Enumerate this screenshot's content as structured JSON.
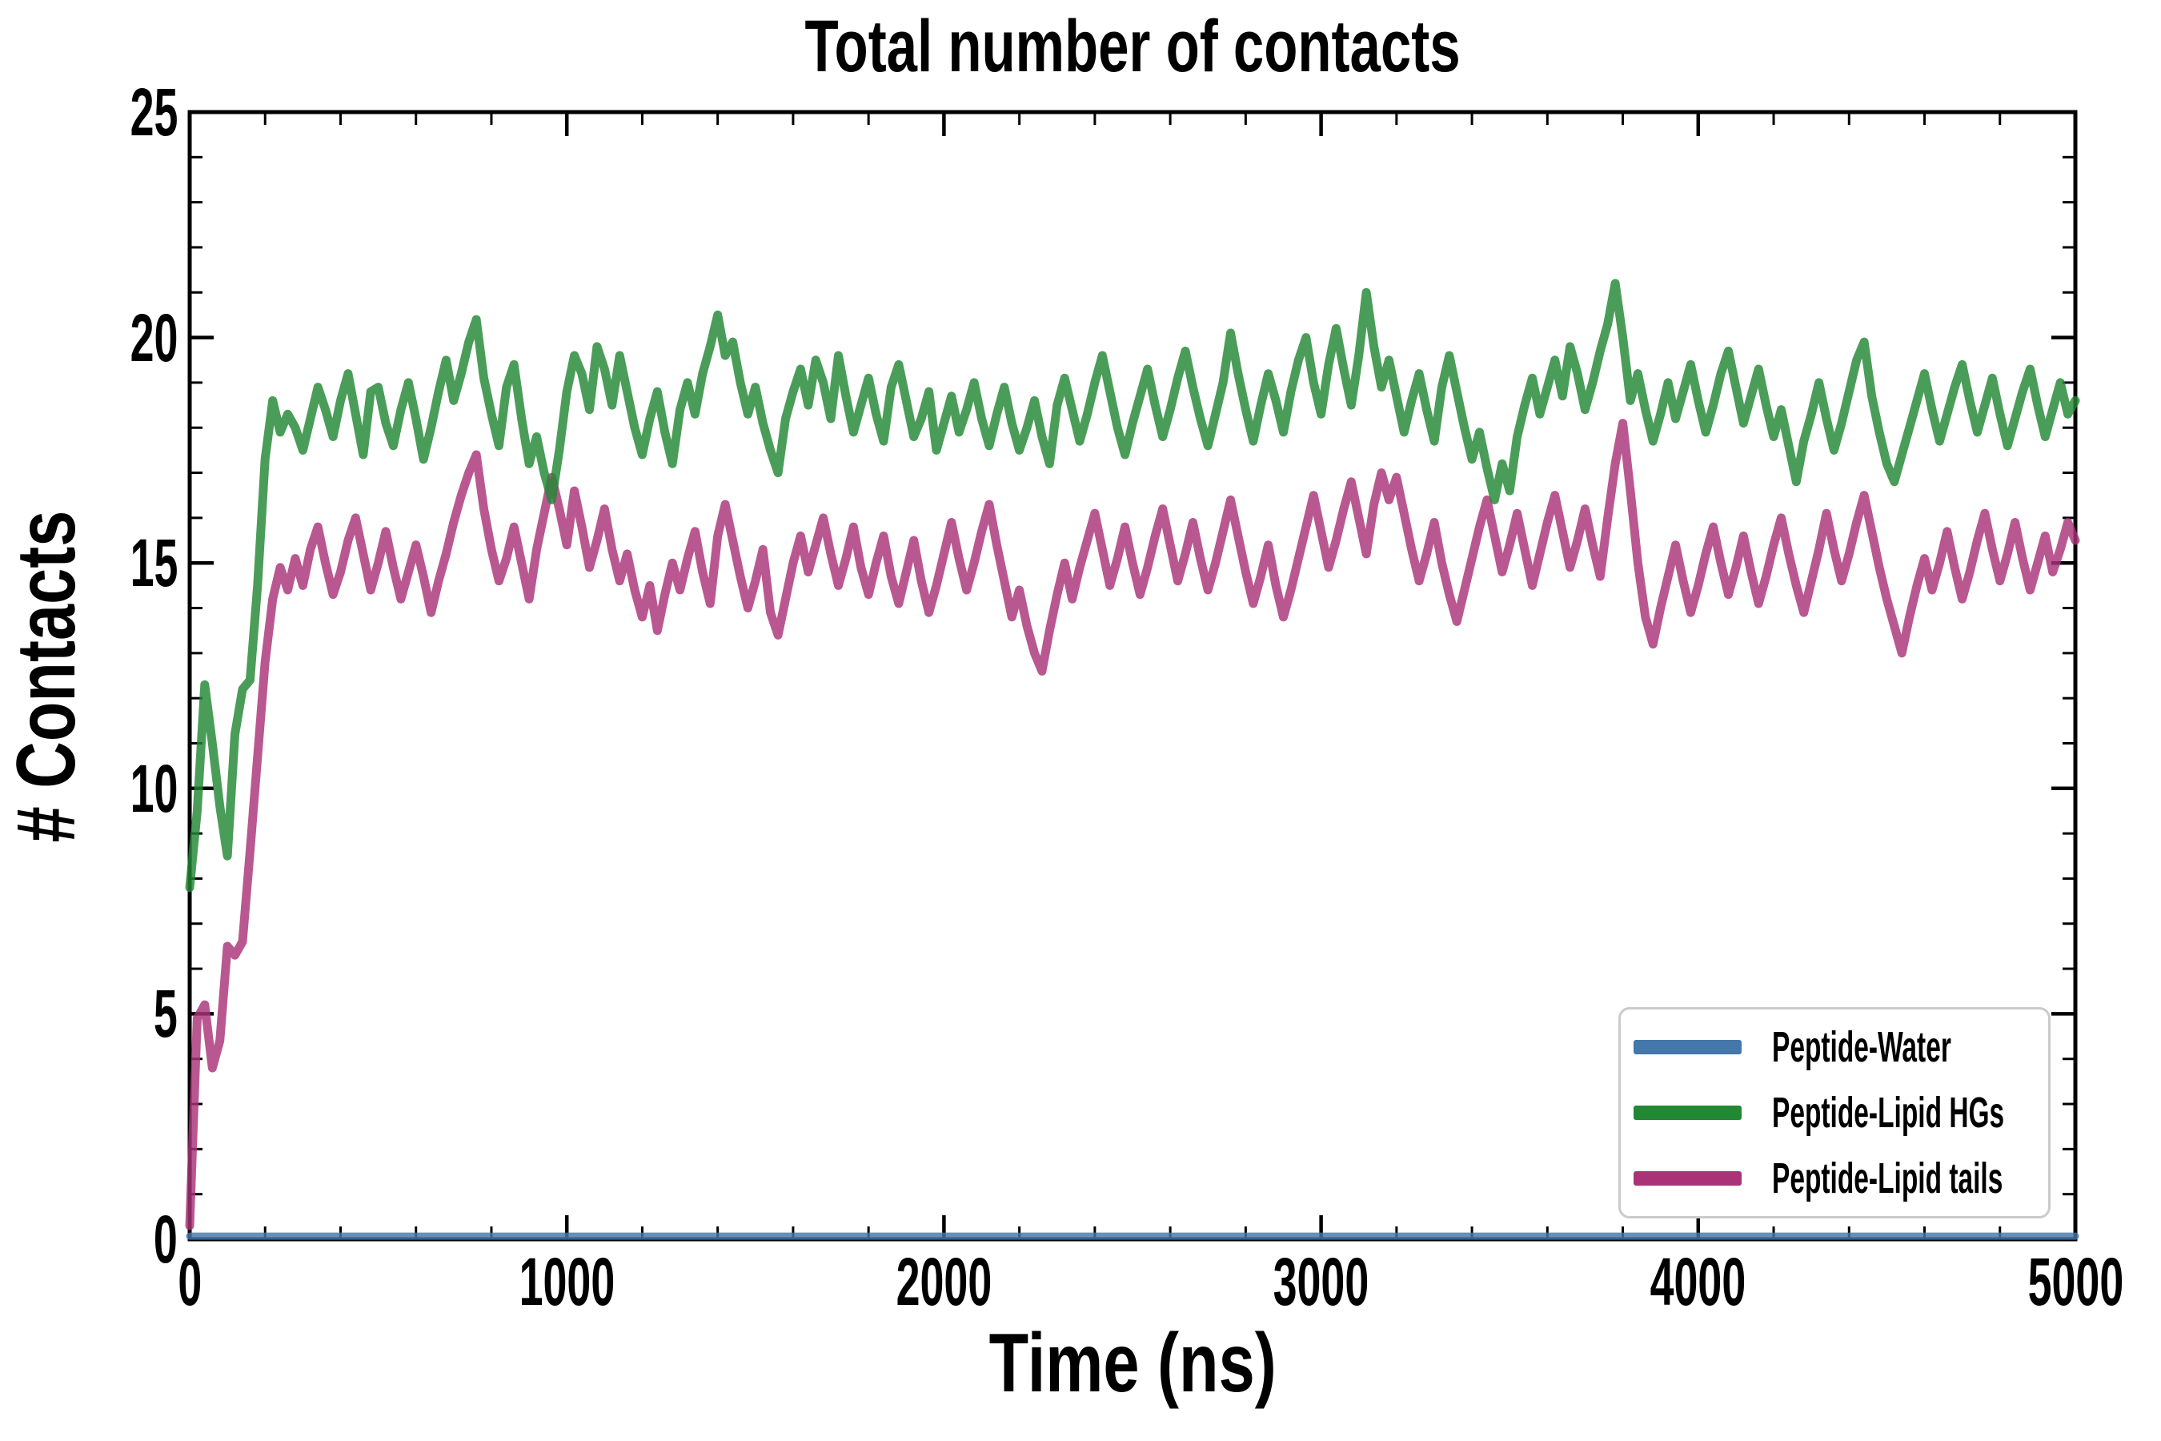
{
  "chart_data": {
    "type": "line",
    "title": "Total number of contacts",
    "xlabel": "Time (ns)",
    "ylabel": "# Contacts",
    "xlim": [
      0,
      5000
    ],
    "ylim": [
      0,
      25
    ],
    "x_tick_values": [
      0,
      1000,
      2000,
      3000,
      4000,
      5000
    ],
    "x_tick_labels": [
      "0",
      "1000",
      "2000",
      "3000",
      "4000",
      "5000"
    ],
    "x_minor_step": 200,
    "y_tick_values": [
      0,
      5,
      10,
      15,
      20,
      25
    ],
    "y_tick_labels": [
      "0",
      "5",
      "10",
      "15",
      "20",
      "25"
    ],
    "y_minor_step": 1,
    "grid": false,
    "background": "#ffffff",
    "legend_position": "lower right",
    "x_unit": "ns",
    "x_start": 0,
    "x_step": 20,
    "series": [
      {
        "name": "Peptide-Water",
        "color": "#4477AA",
        "line_width": 9,
        "constant_y": 0.07
      },
      {
        "name": "Peptide-Lipid tails",
        "color": "#AA3377",
        "line_width": 11,
        "y": [
          0.3,
          4.9,
          5.2,
          3.8,
          4.4,
          6.5,
          6.3,
          6.6,
          8.6,
          10.7,
          12.8,
          14.2,
          14.9,
          14.4,
          15.1,
          14.5,
          15.3,
          15.8,
          15.0,
          14.3,
          14.8,
          15.5,
          16.0,
          15.2,
          14.4,
          15.0,
          15.7,
          14.9,
          14.2,
          14.8,
          15.4,
          14.7,
          13.9,
          14.6,
          15.2,
          15.9,
          16.5,
          17.0,
          17.4,
          16.2,
          15.3,
          14.6,
          15.1,
          15.8,
          15.0,
          14.2,
          15.3,
          16.1,
          16.9,
          16.2,
          15.4,
          16.6,
          15.8,
          14.9,
          15.5,
          16.2,
          15.3,
          14.6,
          15.2,
          14.4,
          13.8,
          14.5,
          13.5,
          14.3,
          15.0,
          14.4,
          15.1,
          15.7,
          14.8,
          14.1,
          15.6,
          16.3,
          15.5,
          14.7,
          14.0,
          14.6,
          15.3,
          13.9,
          13.4,
          14.2,
          15.0,
          15.6,
          14.8,
          15.4,
          16.0,
          15.2,
          14.5,
          15.1,
          15.8,
          14.9,
          14.3,
          15.0,
          15.6,
          14.7,
          14.1,
          14.8,
          15.5,
          14.6,
          13.9,
          14.5,
          15.2,
          15.9,
          15.1,
          14.4,
          15.0,
          15.7,
          16.3,
          15.4,
          14.6,
          13.8,
          14.4,
          13.6,
          13.0,
          12.6,
          13.5,
          14.3,
          15.0,
          14.2,
          14.9,
          15.5,
          16.1,
          15.3,
          14.5,
          15.1,
          15.8,
          15.0,
          14.3,
          14.9,
          15.6,
          16.2,
          15.4,
          14.6,
          15.2,
          15.9,
          15.1,
          14.4,
          15.0,
          15.7,
          16.4,
          15.6,
          14.8,
          14.1,
          14.7,
          15.4,
          14.5,
          13.8,
          14.4,
          15.1,
          15.8,
          16.5,
          15.7,
          14.9,
          15.5,
          16.2,
          16.8,
          16.0,
          15.2,
          16.3,
          17.0,
          16.4,
          16.9,
          16.1,
          15.3,
          14.6,
          15.2,
          15.9,
          15.0,
          14.3,
          13.7,
          14.4,
          15.1,
          15.8,
          16.4,
          15.6,
          14.8,
          15.4,
          16.1,
          15.3,
          14.5,
          15.2,
          15.9,
          16.5,
          15.7,
          14.9,
          15.5,
          16.2,
          15.4,
          14.7,
          16.0,
          17.2,
          18.1,
          16.6,
          15.0,
          13.8,
          13.2,
          14.0,
          14.7,
          15.4,
          14.6,
          13.9,
          14.5,
          15.2,
          15.8,
          15.0,
          14.3,
          14.9,
          15.6,
          14.8,
          14.1,
          14.7,
          15.4,
          16.0,
          15.2,
          14.5,
          13.9,
          14.6,
          15.3,
          16.1,
          15.3,
          14.6,
          15.2,
          15.9,
          16.5,
          15.7,
          14.9,
          14.2,
          13.6,
          13.0,
          13.8,
          14.5,
          15.1,
          14.4,
          15.0,
          15.7,
          14.9,
          14.2,
          14.8,
          15.5,
          16.1,
          15.3,
          14.6,
          15.2,
          15.9,
          15.1,
          14.4,
          15.0,
          15.6,
          14.8,
          15.3,
          15.9,
          15.5
        ]
      },
      {
        "name": "Peptide-Lipid HGs",
        "color": "#228833",
        "line_width": 11,
        "y": [
          7.8,
          9.5,
          12.3,
          11.0,
          9.6,
          8.5,
          11.2,
          12.2,
          12.4,
          14.5,
          17.3,
          18.6,
          17.9,
          18.3,
          18.0,
          17.5,
          18.2,
          18.9,
          18.4,
          17.8,
          18.6,
          19.2,
          18.3,
          17.4,
          18.8,
          18.9,
          18.1,
          17.6,
          18.4,
          19.0,
          18.2,
          17.3,
          18.0,
          18.8,
          19.5,
          18.6,
          19.2,
          19.9,
          20.4,
          19.1,
          18.3,
          17.6,
          18.9,
          19.4,
          18.2,
          17.2,
          17.8,
          17.0,
          16.4,
          17.5,
          18.8,
          19.6,
          19.2,
          18.4,
          19.8,
          19.3,
          18.5,
          19.6,
          18.8,
          18.0,
          17.4,
          18.2,
          18.8,
          17.9,
          17.2,
          18.4,
          19.0,
          18.3,
          19.2,
          19.8,
          20.5,
          19.6,
          19.9,
          19.0,
          18.3,
          18.9,
          18.1,
          17.5,
          17.0,
          18.2,
          18.8,
          19.3,
          18.5,
          19.5,
          19.0,
          18.2,
          19.6,
          18.7,
          17.9,
          18.5,
          19.1,
          18.3,
          17.7,
          18.9,
          19.4,
          18.6,
          17.8,
          18.2,
          18.8,
          17.5,
          18.1,
          18.7,
          17.9,
          18.4,
          19.0,
          18.2,
          17.6,
          18.3,
          18.9,
          18.1,
          17.5,
          18.0,
          18.6,
          17.8,
          17.2,
          18.5,
          19.1,
          18.4,
          17.7,
          18.3,
          19.0,
          19.6,
          18.8,
          18.0,
          17.4,
          18.1,
          18.7,
          19.3,
          18.5,
          17.8,
          18.4,
          19.1,
          19.7,
          18.9,
          18.2,
          17.6,
          18.3,
          19.0,
          20.1,
          19.2,
          18.4,
          17.7,
          18.5,
          19.2,
          18.6,
          17.9,
          18.8,
          19.5,
          20.0,
          19.0,
          18.3,
          19.4,
          20.2,
          19.3,
          18.5,
          19.6,
          21.0,
          19.8,
          18.9,
          19.5,
          18.7,
          17.9,
          18.6,
          19.2,
          18.4,
          17.7,
          18.9,
          19.6,
          18.8,
          18.0,
          17.3,
          17.9,
          17.1,
          16.4,
          17.2,
          16.6,
          17.8,
          18.5,
          19.1,
          18.3,
          18.9,
          19.5,
          18.7,
          19.8,
          19.2,
          18.4,
          19.0,
          19.7,
          20.3,
          21.2,
          20.0,
          18.6,
          19.2,
          18.4,
          17.7,
          18.3,
          19.0,
          18.2,
          18.8,
          19.4,
          18.6,
          17.9,
          18.5,
          19.2,
          19.7,
          18.9,
          18.1,
          18.7,
          19.3,
          18.5,
          17.8,
          18.4,
          17.6,
          16.8,
          17.7,
          18.3,
          19.0,
          18.2,
          17.5,
          18.1,
          18.8,
          19.5,
          19.9,
          18.7,
          17.9,
          17.2,
          16.8,
          17.4,
          18.0,
          18.6,
          19.2,
          18.4,
          17.7,
          18.3,
          18.9,
          19.4,
          18.6,
          17.9,
          18.5,
          19.1,
          18.3,
          17.6,
          18.2,
          18.8,
          19.3,
          18.5,
          17.8,
          18.4,
          19.0,
          18.3,
          18.6
        ]
      }
    ]
  },
  "legend": {
    "items": [
      {
        "label": "Peptide-Water",
        "color": "#4477AA"
      },
      {
        "label": "Peptide-Lipid HGs",
        "color": "#228833"
      },
      {
        "label": "Peptide-Lipid tails",
        "color": "#AA3377"
      }
    ]
  },
  "style": {
    "line_opacity": "0.82",
    "spine_color": "#000000",
    "legend_border_color": "#cbcbcb"
  }
}
